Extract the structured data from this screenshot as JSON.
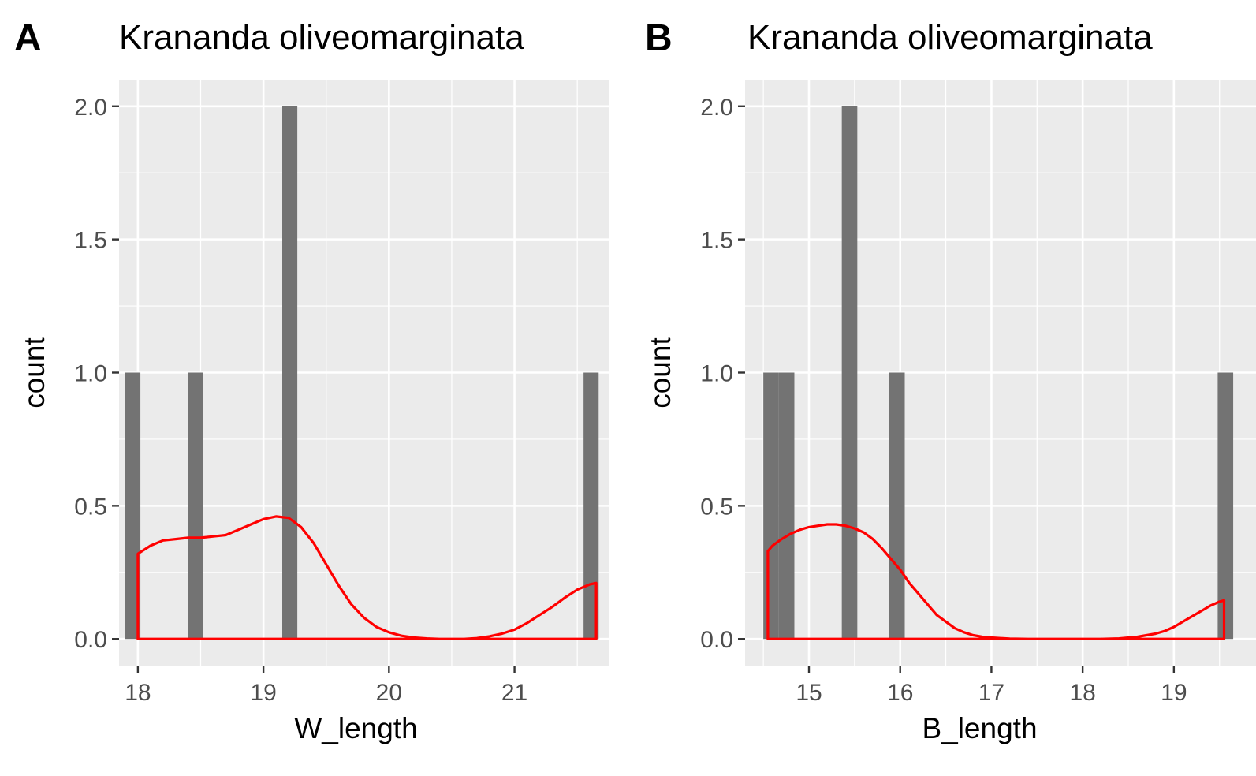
{
  "chart_data": [
    {
      "type": "bar",
      "panel_label": "A",
      "title": "Krananda oliveomarginata",
      "xlabel": "W_length",
      "ylabel": "count",
      "xlim": [
        17.85,
        21.75
      ],
      "ylim": [
        -0.1,
        2.1
      ],
      "x_ticks": [
        18,
        19,
        20,
        21
      ],
      "y_ticks": [
        0.0,
        0.5,
        1.0,
        1.5,
        2.0
      ],
      "y_tick_labels": [
        "0.0",
        "0.5",
        "1.0",
        "1.5",
        "2.0"
      ],
      "grid": true,
      "bar_color": "#737373",
      "bins": [
        {
          "x_start": 17.9,
          "x_end": 18.02,
          "count": 1
        },
        {
          "x_start": 18.4,
          "x_end": 18.52,
          "count": 1
        },
        {
          "x_start": 19.15,
          "x_end": 19.27,
          "count": 2
        },
        {
          "x_start": 21.55,
          "x_end": 21.67,
          "count": 1
        }
      ],
      "density_color": "#ff0000",
      "density": {
        "x": [
          18.0,
          18.1,
          18.2,
          18.3,
          18.4,
          18.5,
          18.6,
          18.7,
          18.8,
          18.9,
          19.0,
          19.1,
          19.2,
          19.3,
          19.4,
          19.5,
          19.6,
          19.7,
          19.8,
          19.9,
          20.0,
          20.1,
          20.2,
          20.3,
          20.4,
          20.5,
          20.6,
          20.7,
          20.8,
          20.9,
          21.0,
          21.1,
          21.2,
          21.3,
          21.4,
          21.5,
          21.6,
          21.65
        ],
        "y": [
          0.32,
          0.35,
          0.37,
          0.375,
          0.38,
          0.38,
          0.385,
          0.39,
          0.41,
          0.43,
          0.45,
          0.46,
          0.455,
          0.42,
          0.36,
          0.28,
          0.2,
          0.13,
          0.08,
          0.045,
          0.025,
          0.012,
          0.005,
          0.002,
          0.0,
          0.0,
          0.0,
          0.003,
          0.01,
          0.02,
          0.035,
          0.06,
          0.09,
          0.12,
          0.155,
          0.185,
          0.205,
          0.21
        ]
      }
    },
    {
      "type": "bar",
      "panel_label": "B",
      "title": "Krananda oliveomarginata",
      "xlabel": "B_length",
      "ylabel": "count",
      "xlim": [
        14.3,
        19.9
      ],
      "ylim": [
        -0.1,
        2.1
      ],
      "x_ticks": [
        15,
        16,
        17,
        18,
        19
      ],
      "y_ticks": [
        0.0,
        0.5,
        1.0,
        1.5,
        2.0
      ],
      "y_tick_labels": [
        "0.0",
        "0.5",
        "1.0",
        "1.5",
        "2.0"
      ],
      "grid": true,
      "bar_color": "#737373",
      "bins": [
        {
          "x_start": 14.5,
          "x_end": 14.67,
          "count": 1
        },
        {
          "x_start": 14.67,
          "x_end": 14.84,
          "count": 1
        },
        {
          "x_start": 15.36,
          "x_end": 15.53,
          "count": 2
        },
        {
          "x_start": 15.88,
          "x_end": 16.05,
          "count": 1
        },
        {
          "x_start": 19.48,
          "x_end": 19.65,
          "count": 1
        }
      ],
      "density_color": "#ff0000",
      "density": {
        "x": [
          14.55,
          14.6,
          14.7,
          14.8,
          14.9,
          15.0,
          15.1,
          15.2,
          15.3,
          15.4,
          15.5,
          15.6,
          15.7,
          15.8,
          15.9,
          16.0,
          16.1,
          16.2,
          16.3,
          16.4,
          16.5,
          16.6,
          16.7,
          16.8,
          16.9,
          17.0,
          17.2,
          17.4,
          17.6,
          17.8,
          18.0,
          18.2,
          18.4,
          18.6,
          18.8,
          18.9,
          19.0,
          19.1,
          19.2,
          19.3,
          19.4,
          19.5,
          19.55
        ],
        "y": [
          0.33,
          0.35,
          0.375,
          0.395,
          0.41,
          0.42,
          0.425,
          0.43,
          0.43,
          0.425,
          0.415,
          0.4,
          0.375,
          0.34,
          0.3,
          0.26,
          0.21,
          0.17,
          0.13,
          0.09,
          0.065,
          0.04,
          0.025,
          0.014,
          0.008,
          0.005,
          0.001,
          0.0,
          0.0,
          0.0,
          0.0,
          0.0,
          0.002,
          0.008,
          0.02,
          0.03,
          0.045,
          0.065,
          0.085,
          0.105,
          0.125,
          0.14,
          0.145
        ]
      }
    }
  ]
}
